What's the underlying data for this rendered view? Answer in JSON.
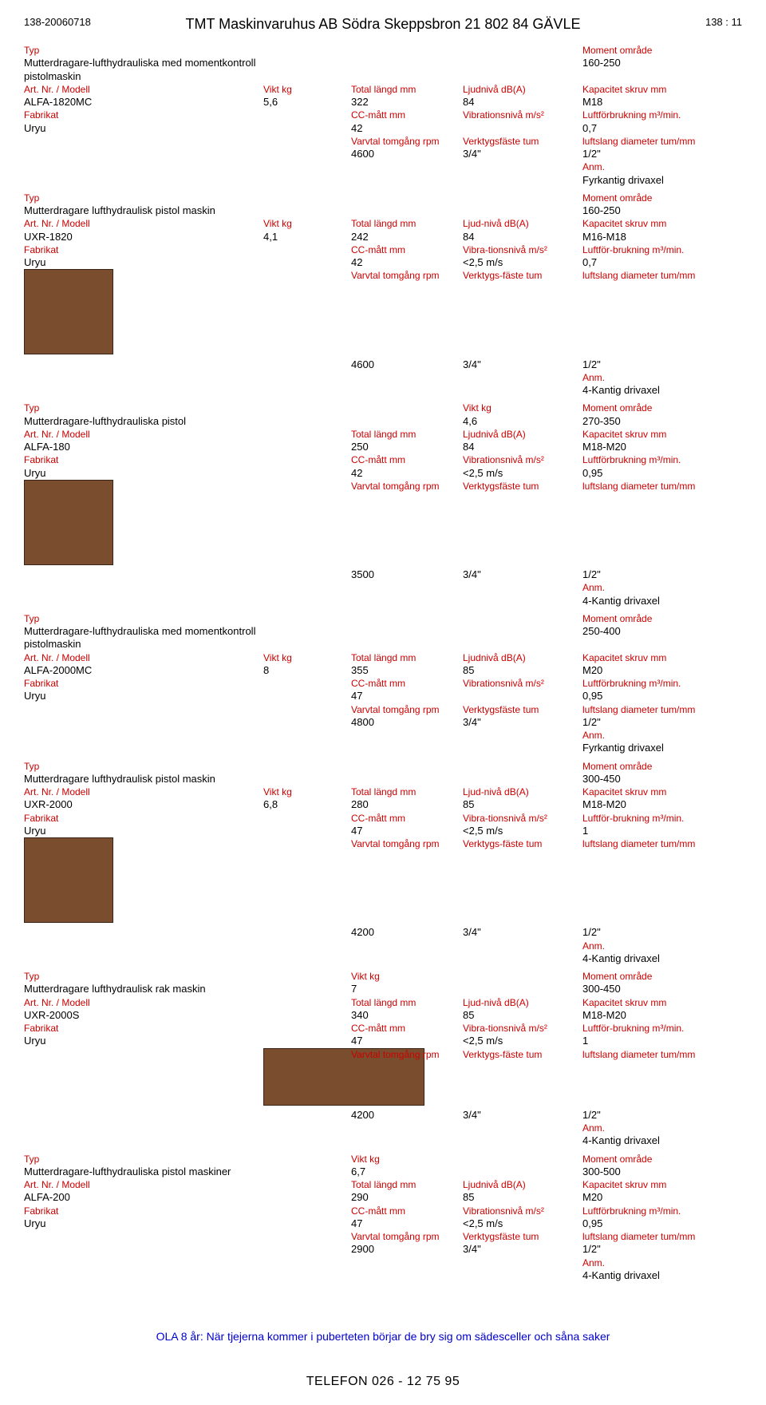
{
  "header": {
    "left": "138-20060718",
    "center": "TMT Maskinvaruhus AB Södra Skeppsbron 21 802 84  GÄVLE",
    "right": "138 : 11"
  },
  "labels": {
    "typ": "Typ",
    "art": "Art. Nr. / Modell",
    "fabrikat": "Fabrikat",
    "vikt": "Vikt kg",
    "total_langd": "Total längd mm",
    "cc_matt": "CC-mått mm",
    "varvtal": "Varvtal tomgång rpm",
    "ljudniva": "Ljudnivå dB(A)",
    "ljudniva2": "Ljud-nivå dB(A)",
    "vibration": "Vibrationsnivå m/s²",
    "vibration2": "Vibra-tionsnivå m/s²",
    "verktygsfaste": "Verktygsfäste tum",
    "verktygsfaste2": "Verktygs-fäste tum",
    "moment": "Moment område",
    "kapacitet": "Kapacitet skruv mm",
    "luftforbrukning": "Luftförbrukning m³/min.",
    "luftforbrukning2": "Luftför-brukning m³/min.",
    "luftslang": "luftslang diameter tum/mm",
    "anm": "Anm."
  },
  "products": [
    {
      "typ": "Mutterdragare-lufthydrauliska med momentkontroll pistolmaskin",
      "art": "ALFA-1820MC",
      "fabrikat": "Uryu",
      "vikt": "5,6",
      "total_langd": "322",
      "cc_matt": "42",
      "varvtal": "4600",
      "ljudniva": "84",
      "vibration": "",
      "verktygsfaste": "3/4\"",
      "moment": "160-250",
      "kapacitet": "M18",
      "luftforbrukning": "0,7",
      "luftslang": "1/2\"",
      "anm": "Fyrkantig drivaxel",
      "image": null,
      "lj_key": "ljudniva",
      "vib_key": "vibration",
      "vf_key": "verktygsfaste",
      "lf_key": "luftforbrukning"
    },
    {
      "typ": "Mutterdragare lufthydraulisk pistol maskin",
      "art": "UXR-1820",
      "fabrikat": "Uryu",
      "vikt": "4,1",
      "total_langd": "242",
      "cc_matt": "42",
      "varvtal": "4600",
      "ljudniva": "84",
      "vibration": "<2,5 m/s",
      "verktygsfaste": "3/4\"",
      "moment": "160-250",
      "kapacitet": "M16-M18",
      "luftforbrukning": "0,7",
      "luftslang": "1/2\"",
      "anm": "4-Kantig drivaxel",
      "image": "pistol",
      "lj_key": "ljudniva2",
      "vib_key": "vibration2",
      "vf_key": "verktygsfaste2",
      "lf_key": "luftforbrukning2"
    },
    {
      "typ": "Mutterdragare-lufthydrauliska pistol",
      "art": "ALFA-180",
      "fabrikat": "Uryu",
      "vikt_in_col4": "4,6",
      "vikt": "",
      "total_langd": "250",
      "cc_matt": "42",
      "varvtal": "3500",
      "ljudniva": "84",
      "vibration": "<2,5 m/s",
      "verktygsfaste": "3/4\"",
      "moment": "270-350",
      "kapacitet": "M18-M20",
      "luftforbrukning": "0,95",
      "luftslang": "1/2\"",
      "anm": "4-Kantig drivaxel",
      "image": "pistol",
      "lj_key": "ljudniva",
      "vib_key": "vibration",
      "vf_key": "verktygsfaste",
      "lf_key": "luftforbrukning",
      "vikt_in_header": true
    },
    {
      "typ": "Mutterdragare-lufthydrauliska med momentkontroll pistolmaskin",
      "art": "ALFA-2000MC",
      "fabrikat": "Uryu",
      "vikt": "8",
      "total_langd": "355",
      "cc_matt": "47",
      "varvtal": "4800",
      "ljudniva": "85",
      "vibration": "",
      "verktygsfaste": "3/4\"",
      "moment": "250-400",
      "kapacitet": "M20",
      "luftforbrukning": "0,95",
      "luftslang": "1/2\"",
      "anm": "Fyrkantig drivaxel",
      "image": null,
      "lj_key": "ljudniva",
      "vib_key": "vibration",
      "vf_key": "verktygsfaste",
      "lf_key": "luftforbrukning"
    },
    {
      "typ": "Mutterdragare lufthydraulisk pistol maskin",
      "art": "UXR-2000",
      "fabrikat": "Uryu",
      "vikt": "6,8",
      "total_langd": "280",
      "cc_matt": "47",
      "varvtal": "4200",
      "ljudniva": "85",
      "vibration": "<2,5 m/s",
      "verktygsfaste": "3/4\"",
      "moment": "300-450",
      "kapacitet": "M18-M20",
      "luftforbrukning": "1",
      "luftslang": "1/2\"",
      "anm": "4-Kantig drivaxel",
      "image": "pistol",
      "lj_key": "ljudniva2",
      "vib_key": "vibration2",
      "vf_key": "verktygsfaste2",
      "lf_key": "luftforbrukning2"
    },
    {
      "typ": "Mutterdragare lufthydraulisk rak maskin",
      "art": "UXR-2000S",
      "fabrikat": "Uryu",
      "vikt_in_col3": "7",
      "vikt": "",
      "total_langd": "340",
      "cc_matt": "47",
      "varvtal": "4200",
      "ljudniva": "85",
      "vibration": "<2,5 m/s",
      "verktygsfaste": "3/4\"",
      "moment": "300-450",
      "kapacitet": "M18-M20",
      "luftforbrukning": "1",
      "luftslang": "1/2\"",
      "anm": "4-Kantig drivaxel",
      "image": "straight",
      "lj_key": "ljudniva2",
      "vib_key": "vibration2",
      "vf_key": "verktygsfaste2",
      "lf_key": "luftforbrukning2",
      "vikt_in_header_c3": true
    },
    {
      "typ": "Mutterdragare-lufthydrauliska pistol maskiner",
      "art": "ALFA-200",
      "fabrikat": "Uryu",
      "vikt_in_col3": "6,7",
      "vikt": "",
      "total_langd": "290",
      "cc_matt": "47",
      "varvtal": "2900",
      "ljudniva": "85",
      "vibration": "<2,5 m/s",
      "verktygsfaste": "3/4\"",
      "moment": "300-500",
      "kapacitet": "M20",
      "luftforbrukning": "0,95",
      "luftslang": "1/2\"",
      "anm": "4-Kantig drivaxel",
      "image": null,
      "lj_key": "ljudniva",
      "vib_key": "vibration",
      "vf_key": "verktygsfaste",
      "lf_key": "luftforbrukning",
      "vikt_in_header_c3": true
    }
  ],
  "footer": {
    "quote": "OLA 8 år: När tjejerna kommer i puberteten börjar de bry sig om sädesceller och såna saker",
    "phone": "TELEFON 026 - 12 75 95"
  },
  "colors": {
    "red": "#cc0000",
    "blue": "#0000ee",
    "black": "#000000",
    "comic_blue": "#0000cc",
    "bg": "#ffffff"
  }
}
